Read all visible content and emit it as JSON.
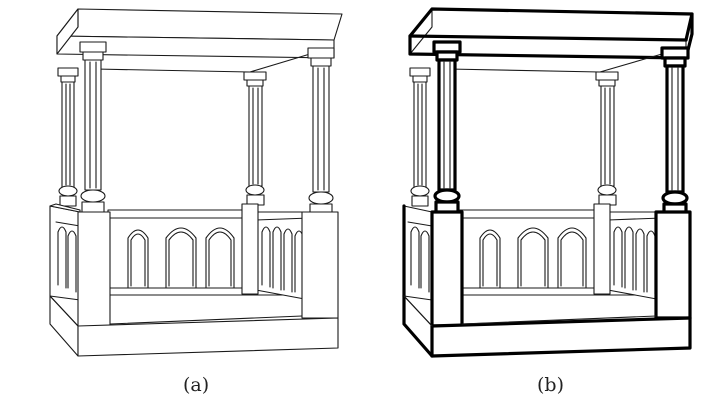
{
  "figure": {
    "panels": [
      {
        "id": "a",
        "caption": "(a)",
        "style": "thin-lines"
      },
      {
        "id": "b",
        "caption": "(b)",
        "style": "bold-outline"
      }
    ],
    "colors": {
      "ink": "#000000",
      "background": "#ffffff"
    }
  }
}
